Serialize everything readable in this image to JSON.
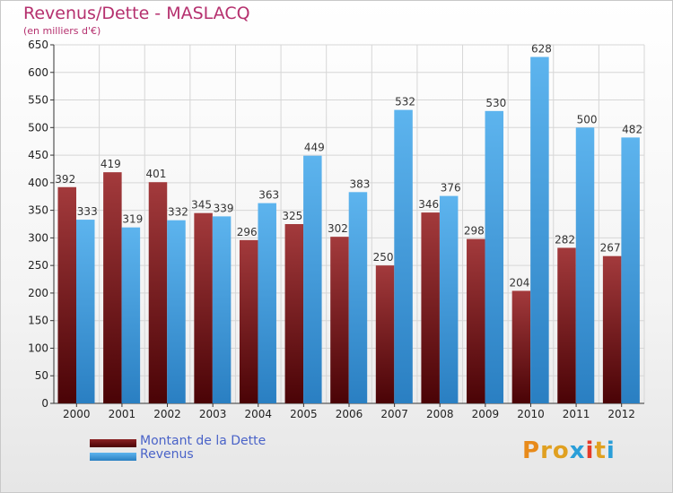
{
  "title": "Revenus/Dette - MASLACQ",
  "subtitle": "(en milliers d'€)",
  "logo": {
    "text": "Proxiti",
    "letter_colors": [
      "#e88a1a",
      "#e0a020",
      "#e0a020",
      "#2a9ed8",
      "#e53a2a",
      "#e0a020",
      "#2a9ed8"
    ]
  },
  "chart_data": {
    "type": "bar",
    "categories": [
      "2000",
      "2001",
      "2002",
      "2003",
      "2004",
      "2005",
      "2006",
      "2007",
      "2008",
      "2009",
      "2010",
      "2011",
      "2012"
    ],
    "series": [
      {
        "name": "Montant de la Dette",
        "color": "#7a1a1c",
        "values": [
          392,
          419,
          401,
          345,
          296,
          325,
          302,
          250,
          346,
          298,
          204,
          282,
          267
        ]
      },
      {
        "name": "Revenus",
        "color": "#4aa3e2",
        "values": [
          333,
          319,
          332,
          339,
          363,
          449,
          383,
          532,
          376,
          530,
          628,
          500,
          482
        ]
      }
    ],
    "ylim": [
      0,
      650
    ],
    "yticks": [
      0,
      50,
      100,
      150,
      200,
      250,
      300,
      350,
      400,
      450,
      500,
      550,
      600,
      650
    ],
    "grid": true,
    "legend_position": "bottom-left"
  }
}
